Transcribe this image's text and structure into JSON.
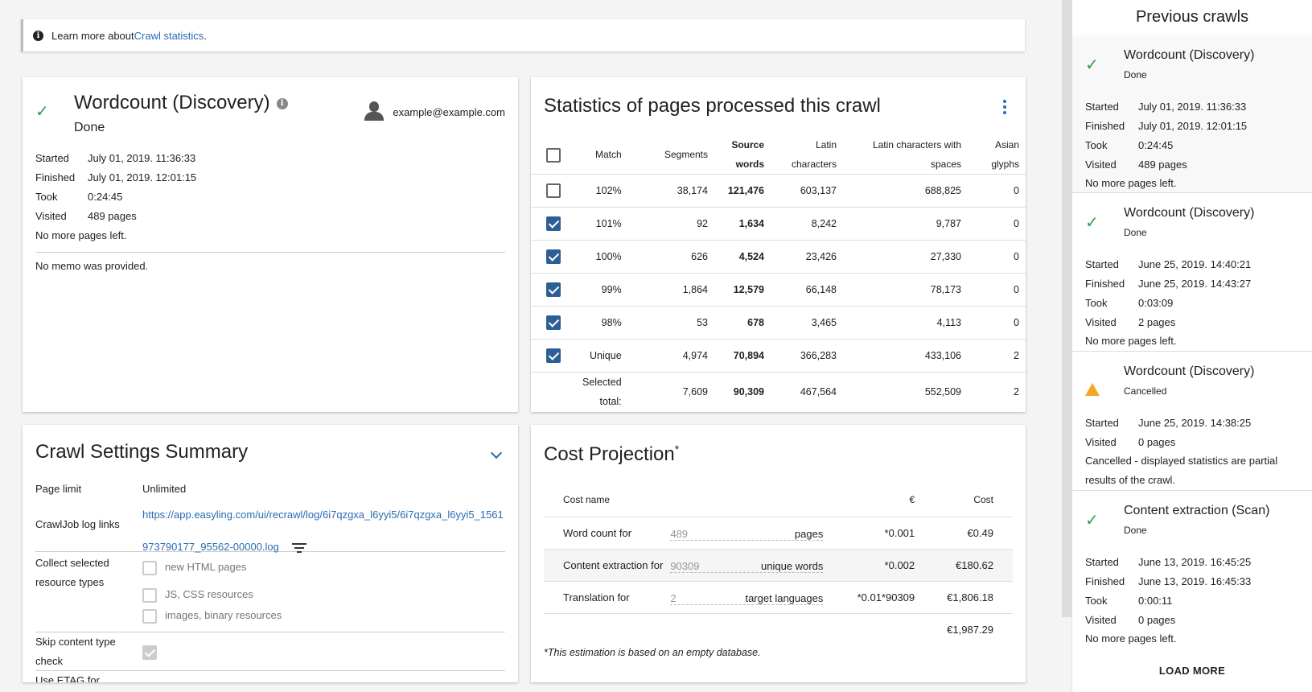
{
  "info": {
    "prefix": "Learn more about ",
    "link": "Crawl statistics",
    "suffix": "."
  },
  "crawl": {
    "title": "Wordcount (Discovery)",
    "status": "Done",
    "user": "example@example.com",
    "rows": [
      {
        "k": "Started",
        "v": "July 01, 2019. 11:36:33"
      },
      {
        "k": "Finished",
        "v": "July 01, 2019. 12:01:15"
      },
      {
        "k": "Took",
        "v": "0:24:45"
      },
      {
        "k": "Visited",
        "v": "489 pages"
      }
    ],
    "no_more": "No more pages left.",
    "memo": "No memo was provided."
  },
  "stats": {
    "title": "Statistics of pages processed this crawl",
    "headers": [
      "Match",
      "Segments",
      "Source words",
      "Latin characters",
      "Latin characters with spaces",
      "Asian glyphs"
    ],
    "rows": [
      {
        "checked": false,
        "cells": [
          "102%",
          "38,174",
          "121,476",
          "603,137",
          "688,825",
          "0"
        ]
      },
      {
        "checked": true,
        "cells": [
          "101%",
          "92",
          "1,634",
          "8,242",
          "9,787",
          "0"
        ]
      },
      {
        "checked": true,
        "cells": [
          "100%",
          "626",
          "4,524",
          "23,426",
          "27,330",
          "0"
        ]
      },
      {
        "checked": true,
        "cells": [
          "99%",
          "1,864",
          "12,579",
          "66,148",
          "78,173",
          "0"
        ]
      },
      {
        "checked": true,
        "cells": [
          "98%",
          "53",
          "678",
          "3,465",
          "4,113",
          "0"
        ]
      },
      {
        "checked": true,
        "cells": [
          "Unique",
          "4,974",
          "70,894",
          "366,283",
          "433,106",
          "2"
        ]
      }
    ],
    "total": [
      "Selected total:",
      "7,609",
      "90,309",
      "467,564",
      "552,509",
      "2"
    ]
  },
  "settings": {
    "title": "Crawl Settings Summary",
    "page_limit_k": "Page limit",
    "page_limit_v": "Unlimited",
    "log_k": "CrawlJob log links",
    "log_v": "https://app.easyling.com/ui/recrawl/log/6i7qzgxa_l6yyi5/6i7qzgxa_l6yyi5_1561973790177_95562-00000.log",
    "collect_k": "Collect selected resource types",
    "collect_opts": [
      "new HTML pages",
      "JS, CSS resources",
      "images, binary resources"
    ],
    "skip_k": "Skip content type check",
    "next_k": "Use ETAG for..."
  },
  "cost": {
    "title": "Cost Projection",
    "sup": "*",
    "headers": [
      "Cost name",
      "€",
      "Cost"
    ],
    "rows": [
      {
        "name": "Word count for",
        "num": "489",
        "unit": "pages",
        "rate": "*0.001",
        "cost": "€0.49"
      },
      {
        "name": "Content extraction for",
        "num": "90309",
        "unit": "unique words",
        "rate": "*0.002",
        "cost": "€180.62"
      },
      {
        "name": "Translation for",
        "num": "2",
        "unit": "target languages",
        "rate": "*0.01*90309",
        "cost": "€1,806.18"
      }
    ],
    "total": "€1,987.29",
    "note": "*This estimation is based on an empty database."
  },
  "sidebar": {
    "title": "Previous crawls",
    "items": [
      {
        "icon": "check-icon",
        "title": "Wordcount (Discovery)",
        "status": "Done",
        "rows": [
          [
            "Started",
            "July 01, 2019. 11:36:33"
          ],
          [
            "Finished",
            "July 01, 2019. 12:01:15"
          ],
          [
            "Took",
            "0:24:45"
          ],
          [
            "Visited",
            "489 pages"
          ]
        ],
        "note": "No more pages left."
      },
      {
        "icon": "check-icon",
        "title": "Wordcount (Discovery)",
        "status": "Done",
        "rows": [
          [
            "Started",
            "June 25, 2019. 14:40:21"
          ],
          [
            "Finished",
            "June 25, 2019. 14:43:27"
          ],
          [
            "Took",
            "0:03:09"
          ],
          [
            "Visited",
            "2 pages"
          ]
        ],
        "note": "No more pages left."
      },
      {
        "icon": "warning-icon",
        "title": "Wordcount (Discovery)",
        "status": "Cancelled",
        "rows": [
          [
            "Started",
            "June 25, 2019. 14:38:25"
          ],
          [
            "Visited",
            "0 pages"
          ]
        ],
        "note": "Cancelled - displayed statistics are partial results of the crawl."
      },
      {
        "icon": "check-icon",
        "title": "Content extraction (Scan)",
        "status": "Done",
        "rows": [
          [
            "Started",
            "June 13, 2019. 16:45:25"
          ],
          [
            "Finished",
            "June 13, 2019. 16:45:33"
          ],
          [
            "Took",
            "0:00:11"
          ],
          [
            "Visited",
            "0 pages"
          ]
        ],
        "note": "No more pages left."
      }
    ],
    "load_more": "LOAD MORE"
  }
}
